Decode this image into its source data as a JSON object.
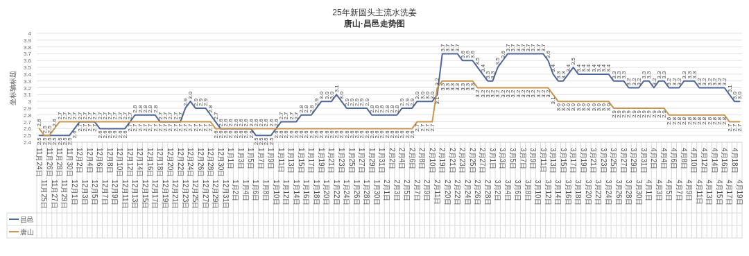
{
  "chart_data": {
    "type": "line",
    "title": "25年新圆头主流水洗姜",
    "subtitle": "唐山·昌邑走势图",
    "ylabel": "坐标轴标题",
    "categories": [
      "11月24日",
      "11月25日",
      "11月26日",
      "11月27日",
      "11月28日",
      "11月29日",
      "11月30日",
      "12月1日",
      "12月2日",
      "12月3日",
      "12月4日",
      "12月5日",
      "12月6日",
      "12月7日",
      "12月8日",
      "12月9日",
      "12月10日",
      "12月11日",
      "12月12日",
      "12月13日",
      "12月14日",
      "12月15日",
      "12月16日",
      "12月17日",
      "12月18日",
      "12月19日",
      "12月20日",
      "12月21日",
      "12月22日",
      "12月23日",
      "12月24日",
      "12月25日",
      "12月26日",
      "12月27日",
      "12月28日",
      "12月29日",
      "12月30日",
      "12月31日",
      "1月1日",
      "1月2日",
      "1月3日",
      "1月4日",
      "1月5日",
      "1月6日",
      "1月7日",
      "1月8日",
      "1月9日",
      "1月10日",
      "1月11日",
      "1月12日",
      "1月13日",
      "1月14日",
      "1月15日",
      "1月16日",
      "1月17日",
      "1月18日",
      "1月19日",
      "1月20日",
      "1月21日",
      "1月22日",
      "1月23日",
      "1月24日",
      "1月25日",
      "1月26日",
      "1月27日",
      "1月28日",
      "1月29日",
      "1月30日",
      "1月31日",
      "2月1日",
      "2月2日",
      "2月3日",
      "2月4日",
      "2月5日",
      "2月6日",
      "2月7日",
      "2月8日",
      "2月9日",
      "2月10日",
      "2月11日",
      "2月19日",
      "2月20日",
      "2月21日",
      "2月22日",
      "2月23日",
      "2月24日",
      "2月25日",
      "2月26日",
      "2月27日",
      "2月28日",
      "3月1日",
      "3月2日",
      "3月3日",
      "3月4日",
      "3月5日",
      "3月6日",
      "3月7日",
      "3月8日",
      "3月9日",
      "3月10日",
      "3月11日",
      "3月12日",
      "3月13日",
      "3月14日",
      "3月15日",
      "3月16日",
      "3月17日",
      "3月18日",
      "3月19日",
      "3月20日",
      "3月21日",
      "3月22日",
      "3月23日",
      "3月24日",
      "3月25日",
      "3月26日",
      "3月27日",
      "3月28日",
      "3月29日",
      "3月30日",
      "3月31日",
      "4月1日",
      "4月2日",
      "4月3日",
      "4月4日",
      "4月5日",
      "4月6日",
      "4月7日",
      "4月8日",
      "4月9日",
      "4月10日",
      "4月11日",
      "4月12日",
      "4月13日",
      "4月14日",
      "4月15日",
      "4月16日",
      "4月17日",
      "4月18日",
      "4月19日"
    ],
    "series": [
      {
        "name": "昌邑",
        "color": "#4e6799",
        "values": [
          2.5,
          2.5,
          2.5,
          2.5,
          2.5,
          2.5,
          2.5,
          2.6,
          2.7,
          2.7,
          2.7,
          2.7,
          2.6,
          2.6,
          2.6,
          2.6,
          2.6,
          2.6,
          2.7,
          2.8,
          2.8,
          2.8,
          2.8,
          2.8,
          2.7,
          2.7,
          2.7,
          2.7,
          2.7,
          2.9,
          3.0,
          2.9,
          2.9,
          2.9,
          2.8,
          2.7,
          2.6,
          2.6,
          2.6,
          2.6,
          2.6,
          2.6,
          2.6,
          2.5,
          2.5,
          2.5,
          2.5,
          2.6,
          2.7,
          2.7,
          2.7,
          2.7,
          2.8,
          2.8,
          2.8,
          2.9,
          3.0,
          3.0,
          3.0,
          3.1,
          3.0,
          2.9,
          2.9,
          2.9,
          2.9,
          2.9,
          2.8,
          2.8,
          2.8,
          2.8,
          2.8,
          2.8,
          2.9,
          2.9,
          2.9,
          3.0,
          3.0,
          3.0,
          3.0,
          3.1,
          3.7,
          3.7,
          3.7,
          3.7,
          3.6,
          3.6,
          3.6,
          3.5,
          3.4,
          3.3,
          3.3,
          3.5,
          3.6,
          3.7,
          3.7,
          3.7,
          3.7,
          3.7,
          3.7,
          3.7,
          3.7,
          3.6,
          3.4,
          3.3,
          3.3,
          3.4,
          3.5,
          3.4,
          3.4,
          3.4,
          3.4,
          3.4,
          3.4,
          3.4,
          3.3,
          3.3,
          3.3,
          3.2,
          3.2,
          3.2,
          3.3,
          3.3,
          3.2,
          3.3,
          3.3,
          3.2,
          3.2,
          3.2,
          3.3,
          3.3,
          3.3,
          3.2,
          3.2,
          3.2,
          3.2,
          3.2,
          3.2,
          3.1,
          3.0,
          3.0
        ],
        "value_labels": [
          "2.5",
          "2.5",
          "2.5",
          "2.5",
          "2.5",
          "2.5",
          "2.5",
          "2.6",
          "2.7",
          "2.7",
          "2.7",
          "2.7",
          "2.6",
          "2.6",
          "2.6",
          "2.6",
          "2.6",
          "2.6",
          "2.7",
          "2.8",
          "2.8",
          "2.8",
          "2.8",
          "2.8",
          "2.7",
          "2.7",
          "2.7",
          "2.7",
          "2.7",
          "2.9",
          "3.0",
          "2.9",
          "2.9",
          "2.9",
          "2.8",
          "2.7",
          "2.6",
          "2.6",
          "2.6",
          "2.6",
          "2.6",
          "2.6",
          "2.6",
          "2.5",
          "2.5",
          "2.5",
          "2.5",
          "2.6",
          "2.7",
          "2.7",
          "2.7",
          "2.7",
          "2.8",
          "2.8",
          "2.8",
          "2.9",
          "3.0",
          "3.0",
          "3.0",
          "3.1",
          "3.0",
          "2.9",
          "2.9",
          "2.9",
          "2.9",
          "2.9",
          "2.8",
          "2.8",
          "2.8",
          "2.8",
          "2.8",
          "2.8",
          "2.9",
          "2.9",
          "2.9",
          "3.0",
          "3.0",
          "3.0",
          "3.0",
          "3.1",
          "3.7",
          "3.7",
          "3.7",
          "3.7",
          "3.6",
          "3.6",
          "3.6",
          "3.5",
          "3.4",
          "3.3",
          "3.3",
          "3.5",
          "3.6",
          "3.7",
          "3.7",
          "3.7",
          "3.7",
          "3.7",
          "3.7",
          "3.7",
          "3.7",
          "3.6",
          "3.4",
          "3.3",
          "3.3",
          "3.4",
          "3.5",
          "3.4",
          "3.4",
          "3.4",
          "3.4",
          "3.4",
          "3.4",
          "3.4",
          "3.3",
          "3.3",
          "3.3",
          "3.2",
          "3.2",
          "3.2",
          "3.3",
          "3.3",
          "3.2",
          "3.3",
          "3.3",
          "3.2",
          "3.2",
          "3.2",
          "3.3",
          "3.3",
          "3.3",
          "3.2",
          "3.2",
          "3.2",
          "3.2",
          "3.2",
          "3.2",
          "3.1",
          "3.0",
          "3.0"
        ]
      },
      {
        "name": "唐山",
        "color": "#c9964f",
        "values": [
          2.6,
          2.5,
          2.5,
          2.6,
          2.7,
          2.7,
          2.7,
          2.7,
          2.7,
          2.7,
          2.7,
          2.7,
          2.7,
          2.7,
          2.7,
          2.7,
          2.7,
          2.7,
          2.7,
          2.7,
          2.7,
          2.7,
          2.7,
          2.7,
          2.7,
          2.7,
          2.7,
          2.7,
          2.7,
          2.7,
          2.7,
          2.7,
          2.7,
          2.7,
          2.7,
          2.6,
          2.6,
          2.6,
          2.6,
          2.6,
          2.6,
          2.6,
          2.6,
          2.6,
          2.6,
          2.6,
          2.6,
          2.6,
          2.6,
          2.6,
          2.6,
          2.6,
          2.6,
          2.6,
          2.6,
          2.6,
          2.6,
          2.6,
          2.6,
          2.6,
          2.6,
          2.6,
          2.6,
          2.6,
          2.6,
          2.6,
          2.6,
          2.6,
          2.6,
          2.6,
          2.6,
          2.6,
          2.6,
          2.6,
          2.6,
          2.7,
          2.7,
          2.7,
          2.7,
          3.2,
          3.3,
          3.3,
          3.3,
          3.3,
          3.3,
          3.3,
          3.3,
          3.2,
          3.2,
          3.2,
          3.2,
          3.2,
          3.2,
          3.2,
          3.2,
          3.2,
          3.2,
          3.2,
          3.2,
          3.2,
          3.2,
          3.2,
          3.1,
          3.0,
          3.0,
          3.0,
          3.0,
          3.0,
          3.0,
          3.0,
          3.0,
          3.0,
          3.0,
          3.0,
          2.9,
          2.9,
          2.9,
          2.9,
          2.9,
          2.9,
          2.9,
          2.9,
          2.9,
          2.9,
          2.9,
          2.8,
          2.8,
          2.8,
          2.8,
          2.8,
          2.8,
          2.8,
          2.8,
          2.8,
          2.8,
          2.8,
          2.8,
          2.7,
          2.7,
          2.7
        ],
        "value_labels": [
          "2.6",
          "2.5",
          "2.5",
          "2.6",
          "2.7",
          "2.7",
          "2.7",
          "2.7",
          "2.7",
          "2.7",
          "2.7",
          "2.7",
          "2.7",
          "2.7",
          "2.7",
          "2.7",
          "2.7",
          "2.7",
          "2.7",
          "2.7",
          "2.7",
          "2.7",
          "2.7",
          "2.7",
          "2.7",
          "2.7",
          "2.7",
          "2.7",
          "2.7",
          "2.7",
          "2.7",
          "2.7",
          "2.7",
          "2.7",
          "2.7",
          "2.6",
          "2.6",
          "2.6",
          "2.6",
          "2.6",
          "2.6",
          "2.6",
          "2.6",
          "2.6",
          "2.6",
          "2.6",
          "2.6",
          "2.6",
          "2.6",
          "2.6",
          "2.6",
          "2.6",
          "2.6",
          "2.6",
          "2.6",
          "2.6",
          "2.6",
          "2.6",
          "2.6",
          "2.6",
          "2.6",
          "2.6",
          "2.6",
          "2.6",
          "2.6",
          "2.6",
          "2.6",
          "2.6",
          "2.6",
          "2.6",
          "2.6",
          "2.6",
          "2.6",
          "2.6",
          "2.6",
          "2.7",
          "2.7",
          "2.7",
          "2.7",
          "3.2",
          "3.3",
          "3.3",
          "3.3",
          "3.3",
          "3.3",
          "3.3",
          "3.3",
          "3.2",
          "3.2",
          "3.2",
          "3.2",
          "3.2",
          "3.2",
          "3.2",
          "3.2",
          "3.2",
          "3.2",
          "3.2",
          "3.2",
          "3.2",
          "3.2",
          "3.2",
          "3.1",
          "3.0",
          "3.0",
          "3.0",
          "3.0",
          "3.0",
          "3.0",
          "3.0",
          "3.0",
          "3.0",
          "3.0",
          "3.0",
          "2.9",
          "2.9",
          "2.9",
          "2.9",
          "2.9",
          "2.9",
          "2.9",
          "2.9",
          "2.9",
          "2.9",
          "2.9",
          "2.8",
          "2.8",
          "2.8",
          "2.8",
          "2.8",
          "2.8",
          "2.8",
          "2.8",
          "2.8",
          "2.8",
          "2.8",
          "2.8",
          "2.7",
          "2.7",
          "2.7"
        ]
      }
    ],
    "ylim": [
      2.4,
      4
    ],
    "yticks": [
      2.4,
      2.5,
      2.6,
      2.7,
      2.8,
      2.9,
      3,
      3.1,
      3.2,
      3.3,
      3.4,
      3.5,
      3.6,
      3.7,
      3.8,
      3.9,
      4
    ],
    "grid": "y",
    "legend": "bottom",
    "marker": "none",
    "line_style": "solid"
  }
}
